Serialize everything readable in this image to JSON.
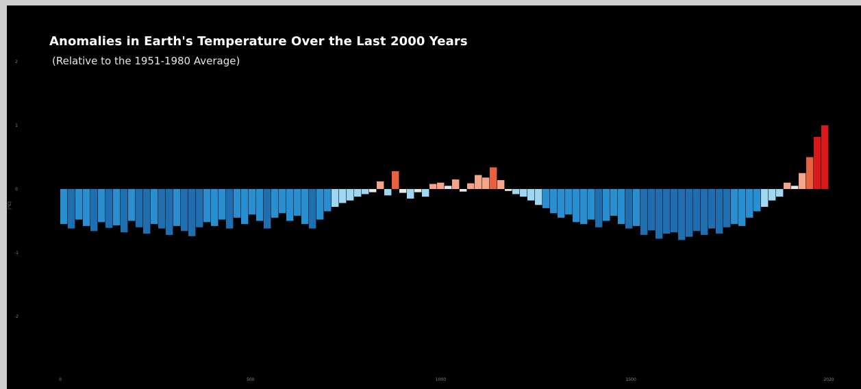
{
  "chart_data": {
    "type": "bar",
    "title": "Anomalies in Earth's Temperature Over the Last 2000 Years",
    "subtitle": "(Relative to the 1951-1980 Average)",
    "ylabel": "(°C)",
    "ylim": [
      -3,
      2
    ],
    "xlim": [
      0,
      2020
    ],
    "yticks": [
      {
        "v": 2,
        "label": "2"
      },
      {
        "v": 1,
        "label": "1"
      },
      {
        "v": 0,
        "label": "0"
      },
      {
        "v": -1,
        "label": "-1"
      },
      {
        "v": -2,
        "label": "-2"
      }
    ],
    "xticks": [
      {
        "v": 0,
        "label": "0"
      },
      {
        "v": 500,
        "label": "500"
      },
      {
        "v": 1000,
        "label": "1000"
      },
      {
        "v": 1500,
        "label": "1500"
      },
      {
        "v": 2020,
        "label": "2020"
      }
    ],
    "grid": false,
    "legend": "none",
    "colors": {
      "cold_dark": "#0f3e6e",
      "cold_mid": "#2a8fd0",
      "cold_light": "#9fd6f2",
      "neutral": "#e8e8e8",
      "warm_light": "#f4a48a",
      "warm_dark": "#d7191c"
    },
    "x": [
      0,
      20,
      40,
      60,
      80,
      100,
      120,
      140,
      160,
      180,
      200,
      220,
      240,
      260,
      280,
      300,
      320,
      340,
      360,
      380,
      400,
      420,
      440,
      460,
      480,
      500,
      520,
      540,
      560,
      580,
      600,
      620,
      640,
      660,
      680,
      700,
      720,
      740,
      760,
      780,
      800,
      820,
      840,
      860,
      880,
      900,
      920,
      940,
      960,
      980,
      1000,
      1020,
      1040,
      1060,
      1080,
      1100,
      1120,
      1140,
      1160,
      1180,
      1200,
      1220,
      1240,
      1260,
      1280,
      1300,
      1320,
      1340,
      1360,
      1380,
      1400,
      1420,
      1440,
      1460,
      1480,
      1500,
      1520,
      1540,
      1560,
      1580,
      1600,
      1620,
      1640,
      1660,
      1680,
      1700,
      1720,
      1740,
      1760,
      1780,
      1800,
      1820,
      1840,
      1860,
      1880,
      1900,
      1920,
      1940,
      1960,
      1980,
      2000,
      2020
    ],
    "values": [
      -0.55,
      -0.62,
      -0.48,
      -0.58,
      -0.66,
      -0.52,
      -0.61,
      -0.57,
      -0.68,
      -0.5,
      -0.6,
      -0.7,
      -0.55,
      -0.62,
      -0.72,
      -0.58,
      -0.66,
      -0.74,
      -0.6,
      -0.52,
      -0.58,
      -0.48,
      -0.62,
      -0.45,
      -0.55,
      -0.4,
      -0.5,
      -0.62,
      -0.45,
      -0.38,
      -0.5,
      -0.42,
      -0.55,
      -0.62,
      -0.48,
      -0.35,
      -0.28,
      -0.22,
      -0.18,
      -0.12,
      -0.08,
      -0.05,
      0.12,
      -0.1,
      0.28,
      -0.06,
      -0.15,
      -0.05,
      -0.12,
      0.08,
      0.1,
      0.05,
      0.15,
      -0.04,
      0.09,
      0.22,
      0.18,
      0.34,
      0.14,
      -0.03,
      -0.08,
      -0.12,
      -0.18,
      -0.25,
      -0.3,
      -0.38,
      -0.45,
      -0.4,
      -0.52,
      -0.55,
      -0.48,
      -0.6,
      -0.5,
      -0.42,
      -0.55,
      -0.62,
      -0.58,
      -0.72,
      -0.65,
      -0.78,
      -0.7,
      -0.68,
      -0.8,
      -0.75,
      -0.66,
      -0.72,
      -0.62,
      -0.7,
      -0.6,
      -0.55,
      -0.58,
      -0.45,
      -0.35,
      -0.28,
      -0.18,
      -0.12,
      0.1,
      0.05,
      0.25,
      0.5,
      0.82,
      1.0
    ]
  }
}
